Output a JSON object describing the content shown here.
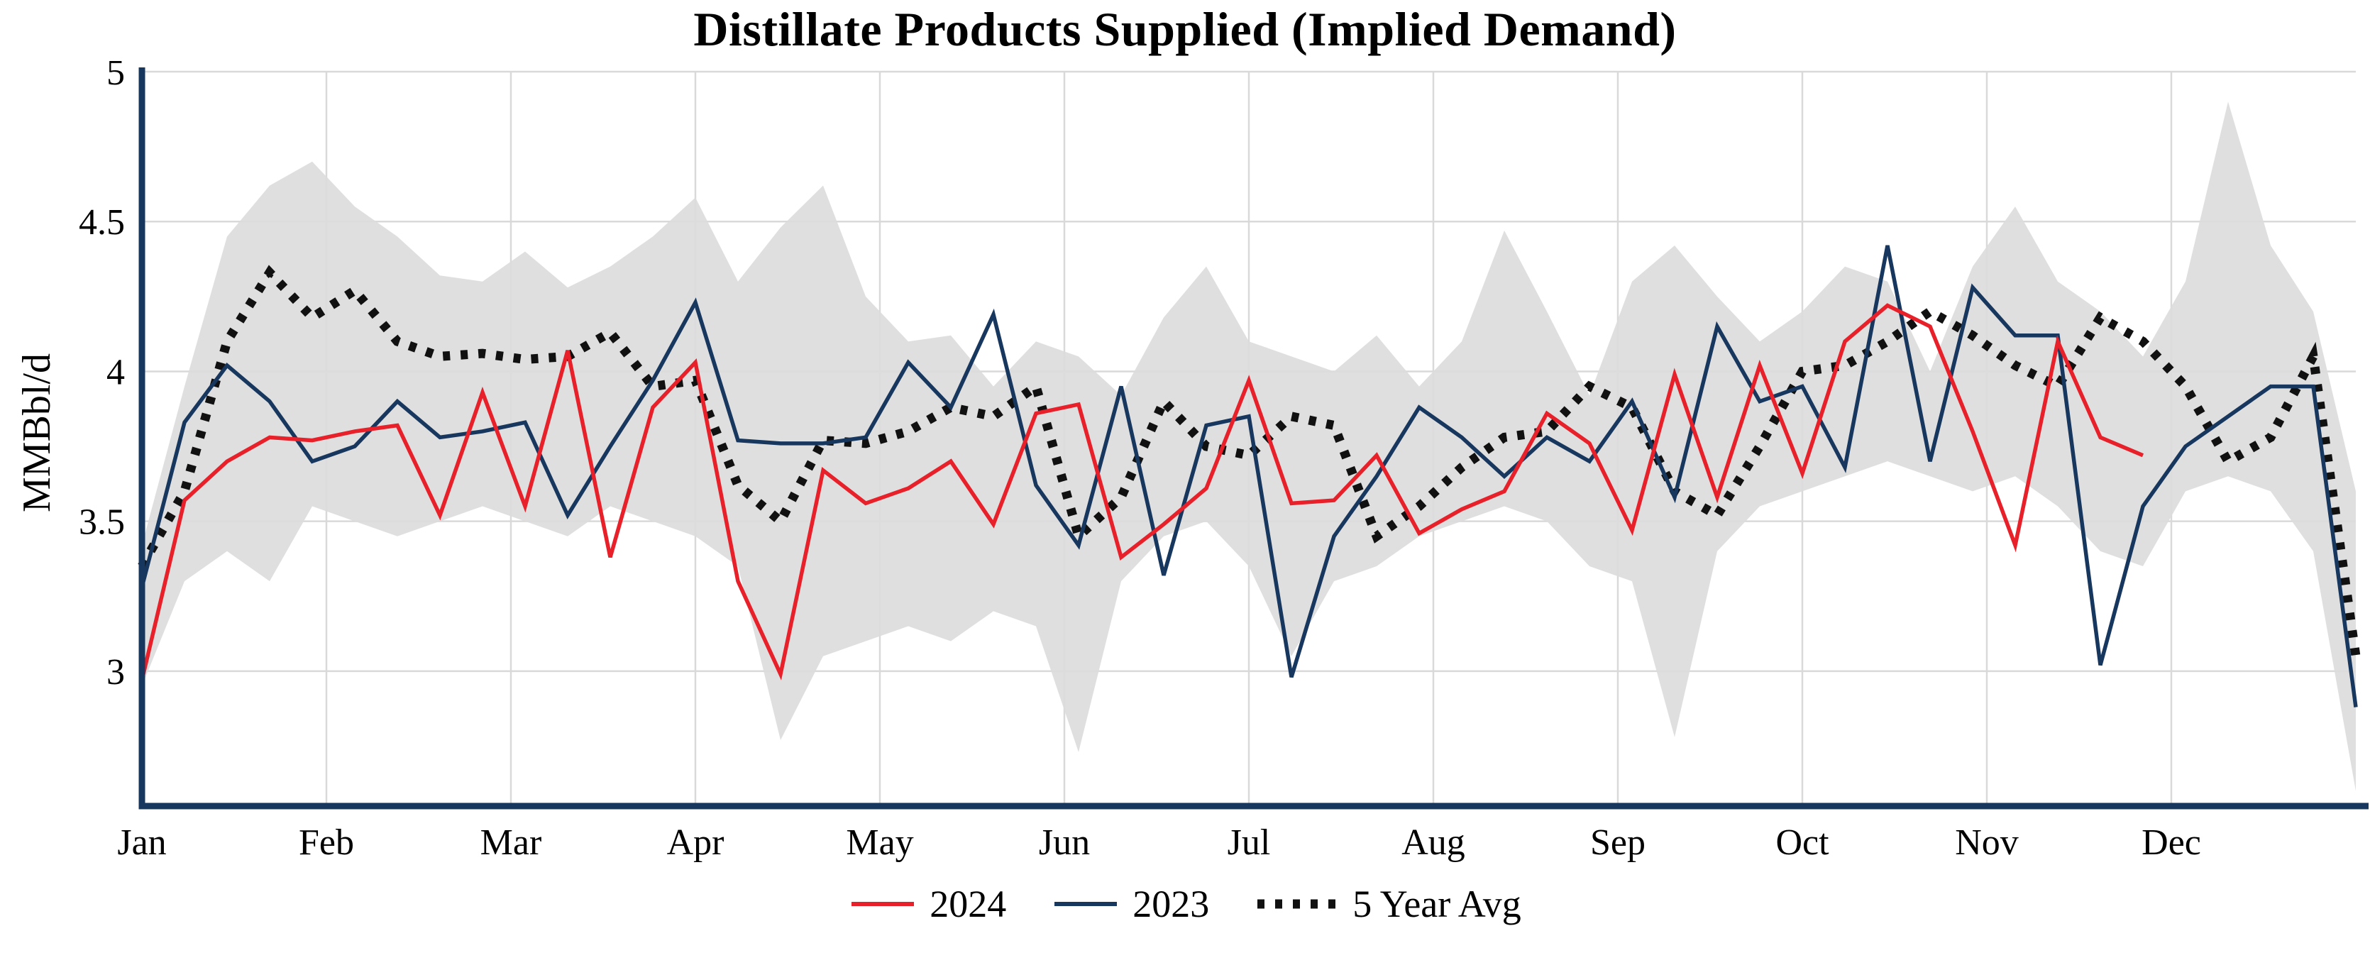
{
  "chart_data": {
    "type": "line",
    "title": "Distillate Products Supplied (Implied Demand)",
    "ylabel": "MMBbl/d",
    "xlabel": "",
    "x_unit": "week of year (Jan–Dec)",
    "ylim": [
      2.55,
      5.0
    ],
    "yticks": [
      5,
      4.5,
      4,
      3.5,
      3
    ],
    "ytick_labels": [
      "5",
      "4.5",
      "4",
      "3.5",
      "3"
    ],
    "months": [
      "Jan",
      "Feb",
      "Mar",
      "Apr",
      "May",
      "Jun",
      "Jul",
      "Aug",
      "Sep",
      "Oct",
      "Nov",
      "Dec"
    ],
    "grid": true,
    "legend_position": "bottom",
    "colors": {
      "axis": "#17375e",
      "grid": "#d9d9d9",
      "background": "#ffffff"
    },
    "band": {
      "name": "5-year range",
      "color": "#dcdcdc",
      "opacity": 0.9,
      "start_week": 1,
      "high": [
        3.42,
        3.95,
        4.45,
        4.62,
        4.7,
        4.55,
        4.45,
        4.32,
        4.3,
        4.4,
        4.28,
        4.35,
        4.45,
        4.58,
        4.3,
        4.48,
        4.62,
        4.25,
        4.1,
        4.12,
        3.95,
        4.1,
        4.05,
        3.92,
        4.18,
        4.35,
        4.1,
        4.05,
        4.0,
        4.12,
        3.95,
        4.1,
        4.47,
        4.2,
        3.92,
        4.3,
        4.42,
        4.25,
        4.1,
        4.2,
        4.35,
        4.3,
        4.0,
        4.35,
        4.55,
        4.3,
        4.2,
        4.05,
        4.3,
        4.9,
        4.42,
        4.2,
        3.6
      ],
      "low": [
        2.95,
        3.3,
        3.4,
        3.3,
        3.55,
        3.5,
        3.45,
        3.5,
        3.55,
        3.5,
        3.45,
        3.55,
        3.5,
        3.45,
        3.35,
        2.77,
        3.05,
        3.1,
        3.15,
        3.1,
        3.2,
        3.15,
        2.73,
        3.3,
        3.45,
        3.5,
        3.35,
        3.05,
        3.3,
        3.35,
        3.45,
        3.5,
        3.55,
        3.5,
        3.35,
        3.3,
        2.78,
        3.4,
        3.55,
        3.6,
        3.65,
        3.7,
        3.65,
        3.6,
        3.65,
        3.55,
        3.4,
        3.35,
        3.6,
        3.65,
        3.6,
        3.4,
        2.6
      ]
    },
    "series": [
      {
        "name": "2024",
        "color": "#e8202a",
        "style": "solid",
        "start_week": 1,
        "values": [
          2.97,
          3.57,
          3.7,
          3.78,
          3.77,
          3.8,
          3.82,
          3.52,
          3.93,
          3.55,
          4.07,
          3.38,
          3.88,
          4.03,
          3.3,
          2.99,
          3.67,
          3.56,
          3.61,
          3.7,
          3.49,
          3.86,
          3.89,
          3.38,
          3.49,
          3.61,
          3.97,
          3.56,
          3.57,
          3.72,
          3.46,
          3.54,
          3.6,
          3.86,
          3.76,
          3.47,
          3.99,
          3.58,
          4.02,
          3.66,
          4.1,
          4.22,
          4.15,
          3.8,
          3.42,
          4.1,
          3.78,
          3.72
        ]
      },
      {
        "name": "2023",
        "color": "#17375e",
        "style": "solid",
        "start_week": 1,
        "values": [
          3.28,
          3.83,
          4.02,
          3.9,
          3.7,
          3.75,
          3.9,
          3.78,
          3.8,
          3.83,
          3.52,
          3.75,
          3.97,
          4.23,
          3.77,
          3.76,
          3.76,
          3.78,
          4.03,
          3.88,
          4.19,
          3.62,
          3.42,
          3.95,
          3.32,
          3.82,
          3.85,
          2.98,
          3.45,
          3.65,
          3.88,
          3.78,
          3.65,
          3.78,
          3.7,
          3.9,
          3.58,
          4.15,
          3.9,
          3.95,
          3.68,
          4.42,
          3.7,
          4.28,
          4.12,
          4.12,
          3.02,
          3.55,
          3.75,
          3.85,
          3.95,
          3.95,
          2.88
        ]
      },
      {
        "name": "5 Year Avg",
        "color": "#111111",
        "style": "dotted",
        "start_week": 1,
        "values": [
          3.35,
          3.6,
          4.1,
          4.33,
          4.18,
          4.27,
          4.1,
          4.05,
          4.06,
          4.04,
          4.05,
          4.13,
          3.95,
          3.97,
          3.62,
          3.5,
          3.77,
          3.76,
          3.8,
          3.88,
          3.85,
          3.95,
          3.45,
          3.58,
          3.9,
          3.75,
          3.72,
          3.85,
          3.82,
          3.45,
          3.55,
          3.68,
          3.78,
          3.8,
          3.95,
          3.88,
          3.6,
          3.52,
          3.75,
          4.0,
          4.02,
          4.1,
          4.2,
          4.12,
          4.02,
          3.95,
          4.18,
          4.1,
          3.95,
          3.7,
          3.78,
          4.05,
          3.05
        ]
      }
    ]
  }
}
